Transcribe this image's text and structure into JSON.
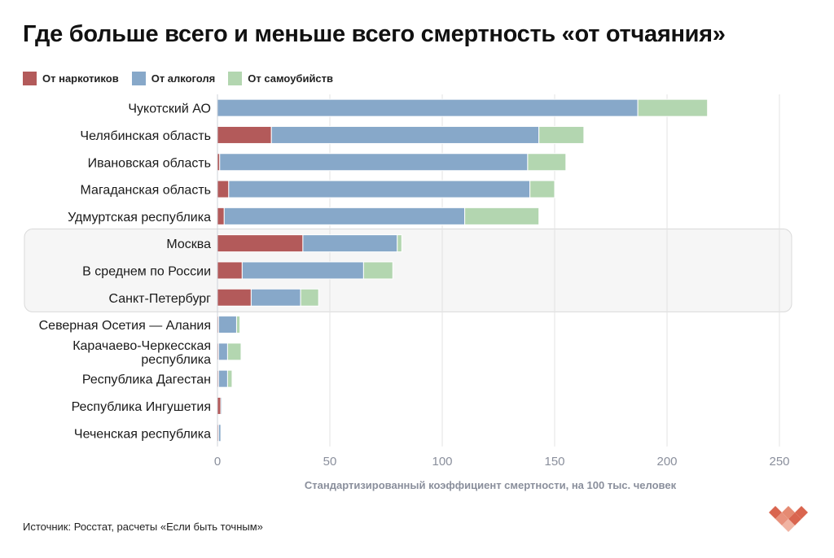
{
  "title": "Где больше всего и меньше всего смертность «от отчаяния»",
  "source": "Источник: Росстат, расчеты «Если быть точным»",
  "colors": {
    "drugs": "#b35a5a",
    "alcohol": "#87a8c9",
    "suicide": "#b3d6b0",
    "grid": "#e3e3e3",
    "axis_text": "#8a8f9c",
    "highlight_bg": "#f6f6f6",
    "highlight_border": "#d9d9d9"
  },
  "chart_data": {
    "type": "bar",
    "orientation": "horizontal",
    "stacked": true,
    "title": "Где больше всего и меньше всего смертность «от отчаяния»",
    "xlabel": "Стандартизированный коэффициент смертности, на 100 тыс. человек",
    "ylabel": "",
    "xlim": [
      0,
      250
    ],
    "xticks": [
      0,
      50,
      100,
      150,
      200,
      250
    ],
    "grid": true,
    "legend_position": "top-left",
    "categories": [
      [
        "Чукотский АО"
      ],
      [
        "Челябинская область"
      ],
      [
        "Ивановская область"
      ],
      [
        "Магаданская область"
      ],
      [
        "Удмуртская республика"
      ],
      [
        "Москва"
      ],
      [
        "В среднем по России"
      ],
      [
        "Санкт-Петербург"
      ],
      [
        "Северная Осетия — Алания"
      ],
      [
        "Карачаево-Черкесская",
        "республика"
      ],
      [
        "Республика Дагестан"
      ],
      [
        "Республика Ингушетия"
      ],
      [
        "Чеченская республика"
      ]
    ],
    "highlighted": [
      "Москва",
      "В среднем по России",
      "Санкт-Петербург"
    ],
    "series": [
      {
        "name": "От наркотиков",
        "color_key": "drugs",
        "values": [
          0,
          24,
          1,
          5,
          3,
          38,
          11,
          15,
          0.5,
          0.5,
          0.5,
          1.5,
          0.5
        ]
      },
      {
        "name": "От алкоголя",
        "color_key": "alcohol",
        "values": [
          187,
          119,
          137,
          134,
          107,
          42,
          54,
          22,
          8,
          4,
          4,
          0.5,
          1
        ]
      },
      {
        "name": "От самоубийств",
        "color_key": "suicide",
        "values": [
          31,
          20,
          17,
          11,
          33,
          2,
          13,
          8,
          1.5,
          6,
          2,
          0,
          0
        ]
      }
    ]
  }
}
